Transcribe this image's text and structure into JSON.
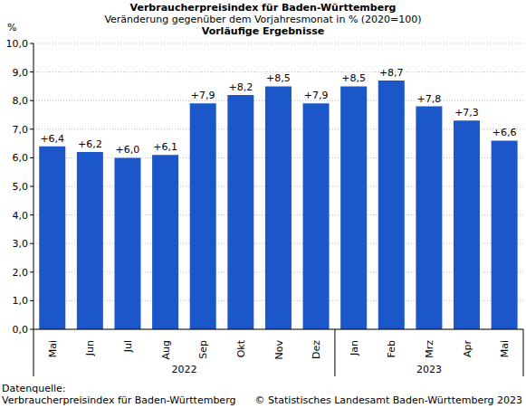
{
  "chart_data": {
    "type": "bar",
    "title": "Verbraucherpreisindex für Baden-Württemberg",
    "subtitle": "Veränderung gegenüber dem Vorjahresmonat in % (2020=100)",
    "note": "Vorläufige Ergebnisse",
    "y_label": "%",
    "categories": [
      "Mai",
      "Jun",
      "Jul",
      "Aug",
      "Sep",
      "Okt",
      "Nov",
      "Dez",
      "Jan",
      "Feb",
      "Mrz",
      "Apr",
      "Mai"
    ],
    "x_groups": [
      {
        "label": "2022",
        "size": 8
      },
      {
        "label": "2023",
        "size": 5
      }
    ],
    "values": [
      6.4,
      6.2,
      6.0,
      6.1,
      7.9,
      8.2,
      8.5,
      7.9,
      8.5,
      8.7,
      7.8,
      7.3,
      6.6
    ],
    "value_labels": [
      "+6,4",
      "+6,2",
      "+6,0",
      "+6,1",
      "+7,9",
      "+8,2",
      "+8,5",
      "+7,9",
      "+8,5",
      "+8,7",
      "+7,8",
      "+7,3",
      "+6,6"
    ],
    "data_labels": true,
    "color": "#1c57c9",
    "ylim": [
      0,
      10
    ],
    "yticks": [
      {
        "value": 0,
        "label": "0,0"
      },
      {
        "value": 1,
        "label": "1,0"
      },
      {
        "value": 2,
        "label": "2,0"
      },
      {
        "value": 3,
        "label": "3,0"
      },
      {
        "value": 4,
        "label": "4,0"
      },
      {
        "value": 5,
        "label": "5,0"
      },
      {
        "value": 6,
        "label": "6,0"
      },
      {
        "value": 7,
        "label": "7,0"
      },
      {
        "value": 8,
        "label": "8,0"
      },
      {
        "value": 9,
        "label": "9,0"
      },
      {
        "value": 10,
        "label": "10,0"
      }
    ],
    "grid": true,
    "source_label": "Datenquelle:",
    "source": "Verbraucherpreisindex für Baden-Württemberg",
    "copyright": "© Statistisches Landesamt Baden-Württemberg 2023"
  }
}
